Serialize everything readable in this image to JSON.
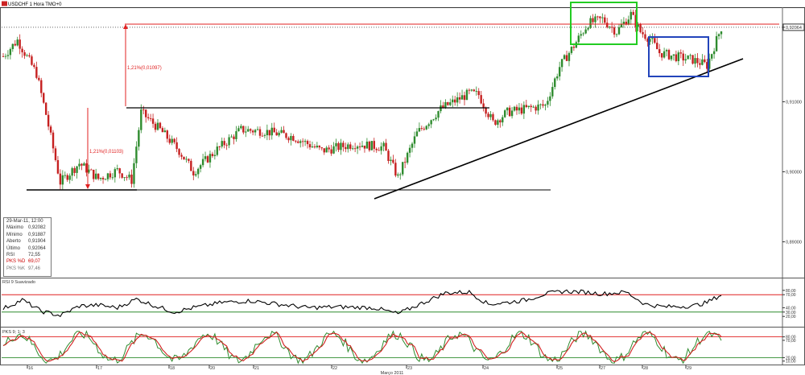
{
  "window": {
    "title": "USDCHF 1 Hora TMO+0",
    "icon": "chart-window-icon"
  },
  "colors": {
    "up_candle": "#2e8b2e",
    "down_candle": "#c62020",
    "trendline": "#000000",
    "resistance": "#e02020",
    "rsi_line": "#000000",
    "stoch_k": "#2e8b2e",
    "stoch_d": "#d22020",
    "green_box": "#22cc22",
    "blue_box": "#2244bb"
  },
  "chart_data": [
    {
      "type": "candlestick",
      "title": "USDCHF 1 Hora TMO+0",
      "ylim": [
        0.885,
        0.9235
      ],
      "y_ticks": [
        "0,92064",
        "0,91000",
        "0,90000",
        "0,89000"
      ],
      "current_price": "0,92064",
      "x_ticks": [
        "16",
        "17",
        "18",
        "20",
        "21",
        "22",
        "23",
        "24",
        "25",
        "27",
        "28",
        "29"
      ],
      "x_axis_label": "Março 2011",
      "annotations": [
        "1,21%(0,01097)",
        "1,21%(0,01103)"
      ],
      "close_waypoints": [
        [
          0,
          0.9165
        ],
        [
          6,
          0.9188
        ],
        [
          14,
          0.914
        ],
        [
          18,
          0.9082
        ],
        [
          24,
          0.8985
        ],
        [
          32,
          0.9012
        ],
        [
          40,
          0.899
        ],
        [
          48,
          0.9002
        ],
        [
          54,
          0.8988
        ],
        [
          58,
          0.9085
        ],
        [
          66,
          0.906
        ],
        [
          74,
          0.903
        ],
        [
          80,
          0.9
        ],
        [
          90,
          0.9032
        ],
        [
          100,
          0.906
        ],
        [
          110,
          0.9058
        ],
        [
          122,
          0.905
        ],
        [
          134,
          0.903
        ],
        [
          148,
          0.904
        ],
        [
          160,
          0.9035
        ],
        [
          166,
          0.8992
        ],
        [
          174,
          0.9055
        ],
        [
          184,
          0.909
        ],
        [
          196,
          0.9112
        ],
        [
          200,
          0.911
        ],
        [
          206,
          0.907
        ],
        [
          212,
          0.9085
        ],
        [
          220,
          0.909
        ],
        [
          228,
          0.9095
        ],
        [
          234,
          0.915
        ],
        [
          240,
          0.918
        ],
        [
          246,
          0.9212
        ],
        [
          252,
          0.9218
        ],
        [
          258,
          0.92
        ],
        [
          264,
          0.9225
        ],
        [
          268,
          0.92
        ],
        [
          272,
          0.919
        ],
        [
          276,
          0.917
        ],
        [
          282,
          0.9165
        ],
        [
          290,
          0.916
        ],
        [
          296,
          0.9152
        ],
        [
          302,
          0.9206
        ]
      ]
    },
    {
      "type": "line",
      "title": "RSI 9 Suavizado",
      "ylim": [
        0,
        100
      ],
      "y_ticks": [
        "80,00",
        "70,00",
        "40,00",
        "30,00",
        "20,00"
      ],
      "reference_lines": [
        70,
        30
      ],
      "value_waypoints": [
        [
          0,
          38
        ],
        [
          8,
          58
        ],
        [
          16,
          32
        ],
        [
          24,
          22
        ],
        [
          32,
          44
        ],
        [
          40,
          46
        ],
        [
          48,
          40
        ],
        [
          56,
          60
        ],
        [
          64,
          44
        ],
        [
          72,
          30
        ],
        [
          80,
          40
        ],
        [
          92,
          52
        ],
        [
          104,
          56
        ],
        [
          116,
          48
        ],
        [
          128,
          40
        ],
        [
          140,
          42
        ],
        [
          156,
          40
        ],
        [
          166,
          26
        ],
        [
          176,
          50
        ],
        [
          186,
          74
        ],
        [
          196,
          76
        ],
        [
          204,
          48
        ],
        [
          212,
          52
        ],
        [
          220,
          58
        ],
        [
          228,
          72
        ],
        [
          236,
          78
        ],
        [
          244,
          76
        ],
        [
          252,
          72
        ],
        [
          262,
          76
        ],
        [
          270,
          48
        ],
        [
          278,
          42
        ],
        [
          290,
          44
        ],
        [
          296,
          52
        ],
        [
          302,
          70
        ]
      ]
    },
    {
      "type": "line",
      "title": "PKS 9; 1; 3",
      "ylim": [
        0,
        100
      ],
      "y_ticks": [
        "80,00",
        "70,00",
        "20,00",
        "10,00"
      ],
      "reference_lines": [
        80,
        20
      ],
      "series": [
        {
          "name": "PKS %K",
          "color": "#2e8b2e"
        },
        {
          "name": "PKS %D",
          "color": "#d22020"
        }
      ]
    }
  ],
  "info_panel": {
    "date": "29-Mar-11, 12:00",
    "rows": [
      {
        "label": "Máximo",
        "value": "0,92082"
      },
      {
        "label": "Mínimo",
        "value": "0,91887"
      },
      {
        "label": "Aberto",
        "value": "0,91904"
      },
      {
        "label": "Último",
        "value": "0,92064"
      },
      {
        "label": "RSI",
        "value": "72,55"
      },
      {
        "label": "PKS %D",
        "value": "69,07"
      },
      {
        "label": "PKS %K",
        "value": "97,46"
      }
    ]
  }
}
